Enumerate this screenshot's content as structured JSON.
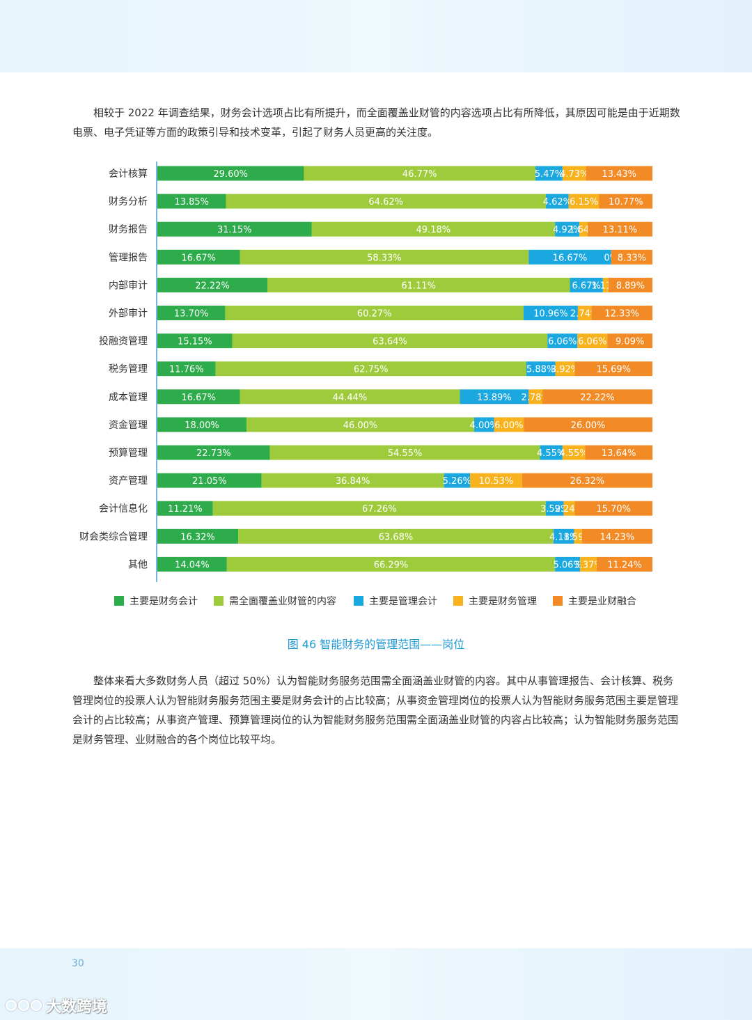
{
  "paragraphs": {
    "intro": "相较于 2022 年调查结果，财务会计选项占比有所提升，而全面覆盖业财管的内容选项占比有所降低，其原因可能是由于近期数电票、电子凭证等方面的政策引导和技术变革，引起了财务人员更高的关注度。",
    "summary": "整体来看大多数财务人员（超过 50%）认为智能财务服务范围需全面涵盖业财管的内容。其中从事管理报告、会计核算、税务管理岗位的投票人认为智能财务服务范围主要是财务会计的占比较高；从事资金管理岗位的投票人认为智能财务服务范围主要是管理会计的占比较高；从事资产管理、预算管理岗位的认为智能财务服务范围需全面涵盖业财管的内容占比较高；认为智能财务服务范围是财务管理、业财融合的各个岗位比较平均。"
  },
  "caption": "图 46  智能财务的管理范围——岗位",
  "page_number": "30",
  "footer_brand": "大数跨境",
  "chart_data": {
    "type": "bar",
    "orientation": "horizontal",
    "stacked": true,
    "title": "",
    "xlabel": "",
    "ylabel": "",
    "xlim": [
      0,
      100
    ],
    "legend_position": "bottom",
    "categories": [
      "会计核算",
      "财务分析",
      "财务报告",
      "管理报告",
      "内部审计",
      "外部审计",
      "投融资管理",
      "税务管理",
      "成本管理",
      "资金管理",
      "预算管理",
      "资产管理",
      "会计信息化",
      "财会类综合管理",
      "其他"
    ],
    "series": [
      {
        "name": "主要是财务会计",
        "color": "#2eac4b",
        "values": [
          29.6,
          13.85,
          31.15,
          16.67,
          22.22,
          13.7,
          15.15,
          11.76,
          16.67,
          18.0,
          22.73,
          21.05,
          11.21,
          16.32,
          14.04
        ]
      },
      {
        "name": "需全面覆盖业财管的内容",
        "color": "#9ecb3c",
        "values": [
          46.77,
          64.62,
          49.18,
          58.33,
          61.11,
          60.27,
          63.64,
          62.75,
          44.44,
          46.0,
          54.55,
          36.84,
          67.26,
          63.68,
          66.29
        ]
      },
      {
        "name": "主要是管理会计",
        "color": "#1ba8e0",
        "values": [
          5.47,
          4.62,
          4.92,
          16.67,
          6.67,
          10.96,
          6.06,
          5.88,
          13.89,
          4.0,
          4.55,
          5.26,
          3.59,
          4.18,
          5.06
        ]
      },
      {
        "name": "主要是财务管理",
        "color": "#f8b21d",
        "values": [
          4.73,
          6.15,
          1.64,
          0,
          1.11,
          2.74,
          6.06,
          3.92,
          2.78,
          6.0,
          4.55,
          10.53,
          2.24,
          1.59,
          3.37
        ]
      },
      {
        "name": "主要是业财融合",
        "color": "#f28a26",
        "values": [
          13.43,
          10.77,
          13.11,
          8.33,
          8.89,
          12.33,
          9.09,
          15.69,
          22.22,
          26.0,
          13.64,
          26.32,
          15.7,
          14.23,
          11.24
        ]
      }
    ]
  }
}
